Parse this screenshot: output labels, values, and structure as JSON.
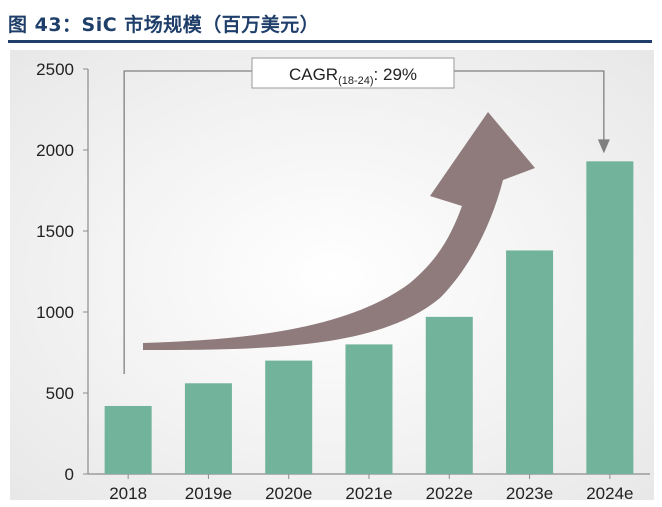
{
  "header": {
    "title": "图 43：SiC 市场规模（百万美元）"
  },
  "colors": {
    "title": "#1f3f6a",
    "bar": "#72b39b",
    "arrow": "#8f7b7c",
    "bracket": "#808080"
  },
  "chart_data": {
    "type": "bar",
    "categories": [
      "2018",
      "2019e",
      "2020e",
      "2021e",
      "2022e",
      "2023e",
      "2024e"
    ],
    "values": [
      420,
      560,
      700,
      800,
      970,
      1380,
      1930
    ],
    "ylim": [
      0,
      2500
    ],
    "yticks": [
      0,
      500,
      1000,
      1500,
      2000,
      2500
    ],
    "grid": false,
    "annotation": {
      "main": "CAGR",
      "subscript": "(18-24)",
      "suffix": ": 29%"
    }
  }
}
